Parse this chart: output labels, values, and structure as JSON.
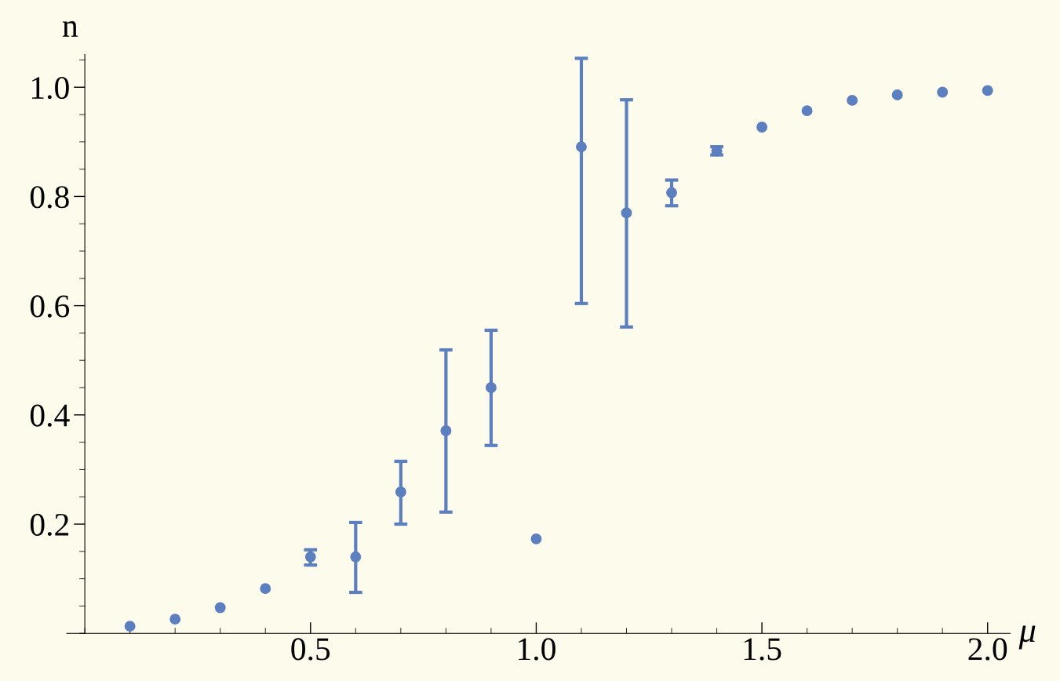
{
  "chart_data": {
    "type": "scatter",
    "xlabel": "μ",
    "ylabel": "n",
    "x": [
      0.1,
      0.2,
      0.3,
      0.4,
      0.5,
      0.6,
      0.7,
      0.8,
      0.9,
      1.0,
      1.1,
      1.2,
      1.3,
      1.4,
      1.5,
      1.6,
      1.7,
      1.8,
      1.9,
      2.0
    ],
    "series": [
      {
        "color": "#5b7fbf",
        "values": [
          0.013,
          0.026,
          0.047,
          0.082,
          0.14,
          0.14,
          0.259,
          0.371,
          0.45,
          0.173,
          0.891,
          0.77,
          0.807,
          0.883,
          0.927,
          0.957,
          0.976,
          0.986,
          0.991,
          0.994
        ],
        "errors": [
          null,
          null,
          null,
          null,
          [
            0.125,
            0.153
          ],
          [
            0.075,
            0.203
          ],
          [
            0.2,
            0.315
          ],
          [
            0.222,
            0.519
          ],
          [
            0.344,
            0.555
          ],
          null,
          [
            0.604,
            1.053
          ],
          [
            0.561,
            0.977
          ],
          [
            0.783,
            0.83
          ],
          [
            0.876,
            0.891
          ],
          null,
          null,
          null,
          null,
          null,
          null
        ]
      }
    ],
    "xlim": [
      -0.04,
      2.05
    ],
    "ylim": [
      0,
      1.06
    ],
    "xticks": [
      0.5,
      {
        "value": 1,
        "label": "1.0"
      },
      1.5,
      {
        "value": 2,
        "label": "2.0"
      }
    ],
    "yticks": [
      0.2,
      0.4,
      0.6,
      0.8,
      {
        "value": 1,
        "label": "1.0"
      }
    ],
    "marker": "circle",
    "grid": false,
    "legend": false
  }
}
